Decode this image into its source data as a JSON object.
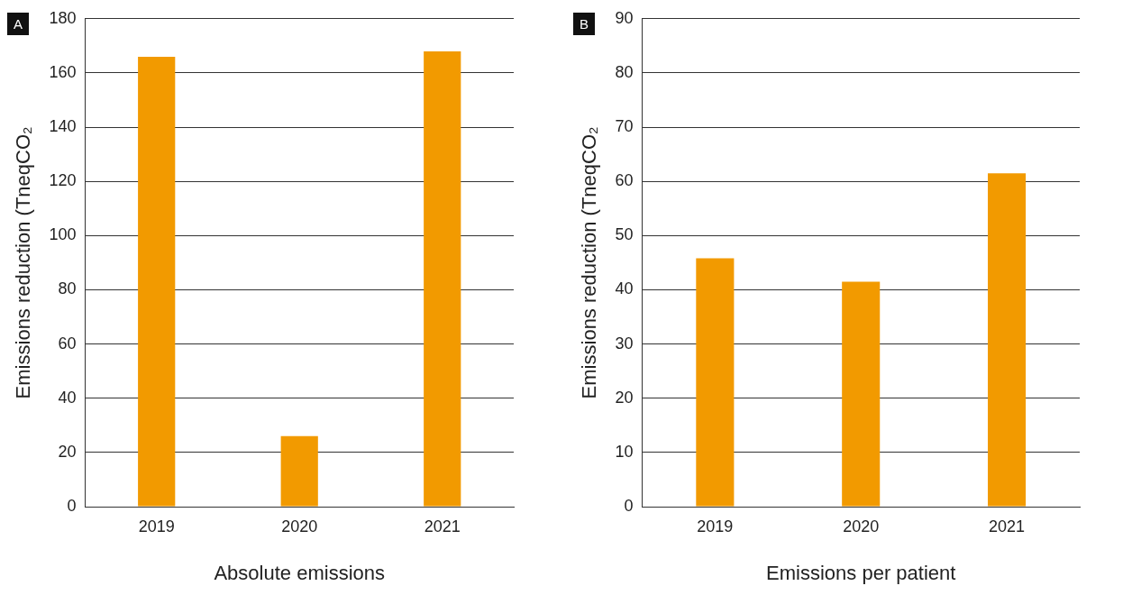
{
  "chart_data": [
    {
      "type": "bar",
      "title": "A",
      "xlabel": "Absolute emissions",
      "ylabel": "Emissions reduction (TneqCO₂",
      "categories": [
        "2019",
        "2020",
        "2021"
      ],
      "values": [
        166,
        26,
        168
      ],
      "color": "#f29a00",
      "ylim": [
        0,
        180
      ],
      "yticks": [
        0,
        20,
        40,
        60,
        80,
        100,
        120,
        140,
        160,
        180
      ],
      "grid": "y"
    },
    {
      "type": "bar",
      "title": "B",
      "xlabel": "Emissions per patient",
      "ylabel": "Emissions reduction (TneqCO₂",
      "categories": [
        "2019",
        "2020",
        "2021"
      ],
      "values": [
        45.8,
        41.5,
        61.5
      ],
      "color": "#f29a00",
      "ylim": [
        0,
        90
      ],
      "yticks": [
        0,
        10,
        20,
        30,
        40,
        50,
        60,
        70,
        80,
        90
      ],
      "grid": "y"
    }
  ]
}
